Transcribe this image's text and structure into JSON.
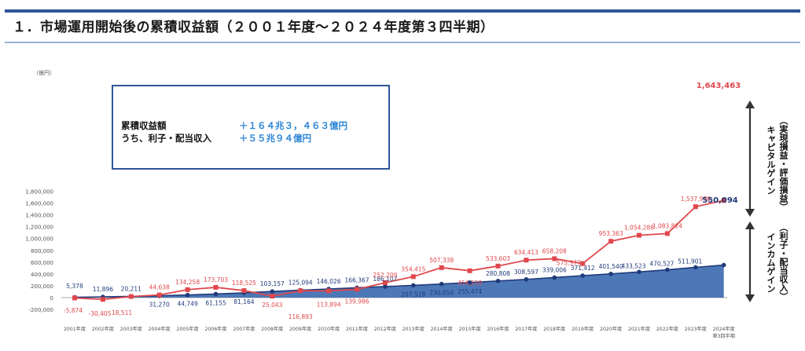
{
  "page": {
    "title": "１．市場運用開始後の累積収益額（２００１年度～２０２４年度第３四半期）"
  },
  "summary_box": {
    "line1_label": "累積収益額",
    "line1_value": "＋１６４兆３，４６３億円",
    "line2_label": "うち、利子・配当収入",
    "line2_value": "＋５５兆９４億円"
  },
  "side_labels": {
    "capital_gain": "キャピタルゲイン",
    "capital_gain_note": "（実現損益・評価損益）",
    "income_gain": "インカムゲイン",
    "income_gain_note": "（利子・配当収入）"
  },
  "colors": {
    "cumulative": "#e0474c",
    "income": "#1f3a7a",
    "income_area": "#3a69b0",
    "accent_bar": "#2f5597"
  },
  "chart_data": {
    "type": "line",
    "title": "",
    "ylabel": "（億円）",
    "ylim": [
      -200000,
      1800000
    ],
    "yticks": [
      -200000,
      0,
      200000,
      400000,
      600000,
      800000,
      1000000,
      1200000,
      1400000,
      1600000,
      1800000
    ],
    "ytick_labels": [
      "-200,000",
      "0",
      "200,000",
      "400,000",
      "600,000",
      "800,000",
      "1,000,000",
      "1,200,000",
      "1,400,000",
      "1,600,000",
      "1,800,000"
    ],
    "grid": false,
    "categories": [
      "2001年度",
      "2002年度",
      "2003年度",
      "2004年度",
      "2005年度",
      "2006年度",
      "2007年度",
      "2008年度",
      "2009年度",
      "2010年度",
      "2011年度",
      "2012年度",
      "2013年度",
      "2014年度",
      "2015年度",
      "2016年度",
      "2017年度",
      "2018年度",
      "2019年度",
      "2020年度",
      "2021年度",
      "2022年度",
      "2023年度",
      "2024年度"
    ],
    "last_category_sub": "第3四半期",
    "series": [
      {
        "key": "cumulative",
        "values": [
          -5874,
          -30405,
          18511,
          44638,
          134258,
          173703,
          118525,
          25043,
          116893,
          113894,
          139986,
          252209,
          354415,
          507338,
          454239,
          533603,
          634413,
          658208,
          575377,
          953363,
          1054288,
          1083824,
          1537976,
          1643463
        ],
        "labels": [
          "-5,874",
          "-30,405",
          "18,511",
          "44,638",
          "134,258",
          "173,703",
          "118,525",
          "25,043",
          "116,893",
          "113,894",
          "139,986",
          "252,209",
          "354,415",
          "507,338",
          "454,239",
          "533,603",
          "634,413",
          "658,208",
          "575,377",
          "953,363",
          "1,054,288",
          "1,083,824",
          "1,537,976",
          "1,643,463"
        ]
      },
      {
        "key": "income",
        "values": [
          5378,
          11896,
          20211,
          31270,
          44749,
          61155,
          81164,
          103157,
          125094,
          146026,
          166367,
          186107,
          207518,
          230050,
          255474,
          280808,
          308597,
          339006,
          371412,
          401540,
          433523,
          470527,
          511901,
          550094
        ],
        "labels": [
          "5,378",
          "11,896",
          "20,211",
          "31,270",
          "44,749",
          "61,155",
          "81,164",
          "103,157",
          "125,094",
          "146,026",
          "166,367",
          "186,107",
          "207,518",
          "230,050",
          "255,474",
          "280,808",
          "308,597",
          "339,006",
          "371,412",
          "401,540",
          "433,523",
          "470,527",
          "511,901",
          "550,094"
        ]
      }
    ]
  }
}
